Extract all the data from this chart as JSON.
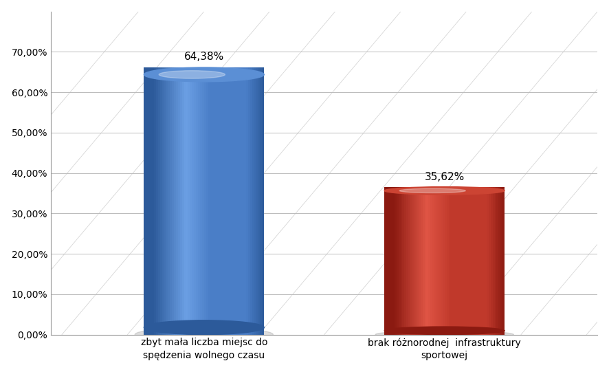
{
  "categories": [
    "zbyt mała liczba miejsc do\nspędzenia wolnego czasu",
    "brak różnorodnej  infrastruktury\nsportowej"
  ],
  "values": [
    64.38,
    35.62
  ],
  "bar_colors_main": [
    "#4A7EC7",
    "#C0392B"
  ],
  "bar_colors_dark": [
    "#2C5A9A",
    "#8B1A11"
  ],
  "bar_colors_light": [
    "#6B9FE4",
    "#E05545"
  ],
  "bar_colors_top": [
    "#5B8FD5",
    "#CC4433"
  ],
  "labels": [
    "64,38%",
    "35,62%"
  ],
  "ylim": [
    0,
    80
  ],
  "yticks": [
    0,
    10,
    20,
    30,
    40,
    50,
    60,
    70
  ],
  "ytick_labels": [
    "0,00%",
    "10,00%",
    "20,00%",
    "30,00%",
    "40,00%",
    "50,00%",
    "60,00%",
    "70,00%"
  ],
  "background_color": "#FFFFFF",
  "grid_color": "#BBBBBB",
  "font_size": 11,
  "label_font_size": 11,
  "bar_positions": [
    0.28,
    0.72
  ],
  "bar_width": 0.22
}
